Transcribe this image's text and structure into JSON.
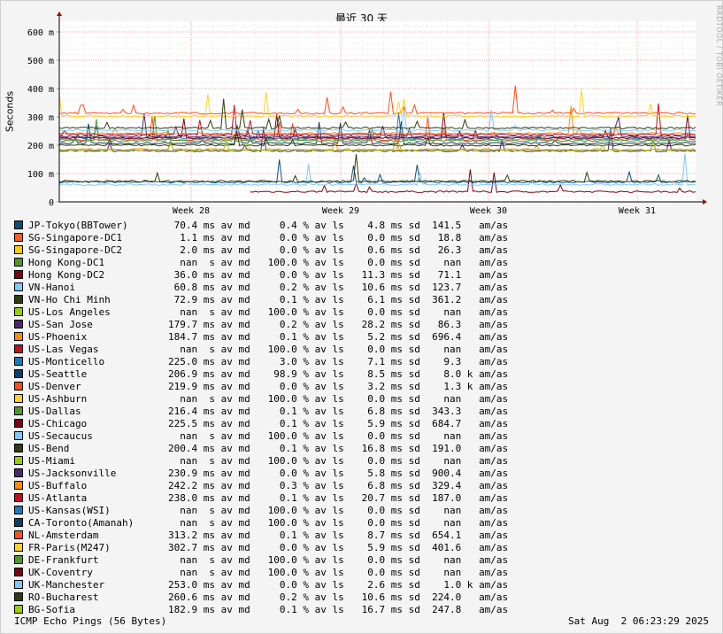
{
  "chart_data": {
    "type": "line",
    "title": "最近 30 天",
    "ylabel": "Seconds",
    "xlabel": "",
    "ylim": [
      0,
      0.65
    ],
    "yticks": [
      "0",
      "100 m",
      "200 m",
      "300 m",
      "400 m",
      "500 m",
      "600 m"
    ],
    "xticks": [
      "Week 28",
      "Week 29",
      "Week 30",
      "Week 31"
    ],
    "grid": true,
    "legend_placement": "below",
    "series": [
      {
        "name": "JP-Tokyo(BBTower)",
        "color": "#0b4f7a",
        "avg": "70.4 ms",
        "loss": "0.4 %",
        "sd": "4.8 ms",
        "amas": "141.5",
        "level": 0.07
      },
      {
        "name": "SG-Singapore-DC1",
        "color": "#ff5a1f",
        "avg": "1.1 ms",
        "loss": "0.0 %",
        "sd": "0.0 ms",
        "amas": "18.8",
        "level": null
      },
      {
        "name": "SG-Singapore-DC2",
        "color": "#ffcc00",
        "avg": "2.0 ms",
        "loss": "0.0 %",
        "sd": "0.6 ms",
        "amas": "26.3",
        "level": null
      },
      {
        "name": "Hong Kong-DC1",
        "color": "#4e9a26",
        "avg": "nan  s",
        "loss": "100.0 %",
        "sd": "0.0 ms",
        "amas": "nan",
        "level": null
      },
      {
        "name": "Hong Kong-DC2",
        "color": "#800015",
        "avg": "36.0 ms",
        "loss": "0.0 %",
        "sd": "11.3 ms",
        "amas": "71.1",
        "level": 0.036
      },
      {
        "name": "VN-Hanoi",
        "color": "#7ec8ff",
        "avg": "60.8 ms",
        "loss": "0.2 %",
        "sd": "10.6 ms",
        "amas": "123.7",
        "level": 0.061
      },
      {
        "name": "VN-Ho Chi Minh",
        "color": "#2e3d0c",
        "avg": "72.9 ms",
        "loss": "0.1 %",
        "sd": "6.1 ms",
        "amas": "361.2",
        "level": 0.073
      },
      {
        "name": "US-Los Angeles",
        "color": "#9bcc0a",
        "avg": "nan  s",
        "loss": "100.0 %",
        "sd": "0.0 ms",
        "amas": "nan",
        "level": null
      },
      {
        "name": "US-San Jose",
        "color": "#4d2670",
        "avg": "179.7 ms",
        "loss": "0.2 %",
        "sd": "28.2 ms",
        "amas": "86.3",
        "level": 0.18
      },
      {
        "name": "US-Phoenix",
        "color": "#ff8c00",
        "avg": "184.7 ms",
        "loss": "0.1 %",
        "sd": "5.2 ms",
        "amas": "696.4",
        "level": 0.185
      },
      {
        "name": "US-Las Vegas",
        "color": "#c40e1a",
        "avg": "nan  s",
        "loss": "100.0 %",
        "sd": "0.0 ms",
        "amas": "nan",
        "level": null
      },
      {
        "name": "US-Monticello",
        "color": "#1b7ab8",
        "avg": "225.0 ms",
        "loss": "3.0 %",
        "sd": "7.1 ms",
        "amas": "9.3",
        "level": 0.225
      },
      {
        "name": "US-Seattle",
        "color": "#0b3f70",
        "avg": "206.9 ms",
        "loss": "98.9 %",
        "sd": "8.5 ms",
        "amas": "8.0 k",
        "level": 0.207
      },
      {
        "name": "US-Denver",
        "color": "#ff4d1a",
        "avg": "219.9 ms",
        "loss": "0.0 %",
        "sd": "3.2 ms",
        "amas": "1.3 k",
        "level": 0.22
      },
      {
        "name": "US-Ashburn",
        "color": "#ffd21f",
        "avg": "nan  s",
        "loss": "100.0 %",
        "sd": "0.0 ms",
        "amas": "nan",
        "level": null
      },
      {
        "name": "US-Dallas",
        "color": "#4e9a26",
        "avg": "216.4 ms",
        "loss": "0.1 %",
        "sd": "6.8 ms",
        "amas": "343.3",
        "level": 0.216
      },
      {
        "name": "US-Chicago",
        "color": "#800015",
        "avg": "225.5 ms",
        "loss": "0.1 %",
        "sd": "5.9 ms",
        "amas": "684.7",
        "level": 0.226
      },
      {
        "name": "US-Secaucus",
        "color": "#7ec8ff",
        "avg": "nan  s",
        "loss": "100.0 %",
        "sd": "0.0 ms",
        "amas": "nan",
        "level": null
      },
      {
        "name": "US-Bend",
        "color": "#2e3d0c",
        "avg": "200.4 ms",
        "loss": "0.1 %",
        "sd": "16.8 ms",
        "amas": "191.0",
        "level": 0.2
      },
      {
        "name": "US-Miami",
        "color": "#9bcc0a",
        "avg": "nan  s",
        "loss": "100.0 %",
        "sd": "0.0 ms",
        "amas": "nan",
        "level": null
      },
      {
        "name": "US-Jacksonville",
        "color": "#4d2670",
        "avg": "230.9 ms",
        "loss": "0.0 %",
        "sd": "5.8 ms",
        "amas": "900.4",
        "level": 0.231
      },
      {
        "name": "US-Buffalo",
        "color": "#ff8c00",
        "avg": "242.2 ms",
        "loss": "0.3 %",
        "sd": "6.8 ms",
        "amas": "329.4",
        "level": 0.242
      },
      {
        "name": "US-Atlanta",
        "color": "#c40e1a",
        "avg": "238.0 ms",
        "loss": "0.1 %",
        "sd": "20.7 ms",
        "amas": "187.0",
        "level": 0.238
      },
      {
        "name": "US-Kansas(WSI)",
        "color": "#1b7ab8",
        "avg": "nan  s",
        "loss": "100.0 %",
        "sd": "0.0 ms",
        "amas": "nan",
        "level": null
      },
      {
        "name": "CA-Toronto(Amanah)",
        "color": "#0b3f70",
        "avg": "nan  s",
        "loss": "100.0 %",
        "sd": "0.0 ms",
        "amas": "nan",
        "level": null
      },
      {
        "name": "NL-Amsterdam",
        "color": "#ff4d1a",
        "avg": "313.2 ms",
        "loss": "0.1 %",
        "sd": "8.7 ms",
        "amas": "654.1",
        "level": 0.313
      },
      {
        "name": "FR-Paris(M247)",
        "color": "#ffd21f",
        "avg": "302.7 ms",
        "loss": "0.0 %",
        "sd": "5.9 ms",
        "amas": "401.6",
        "level": 0.303
      },
      {
        "name": "DE-Frankfurt",
        "color": "#4e9a26",
        "avg": "nan  s",
        "loss": "100.0 %",
        "sd": "0.0 ms",
        "amas": "nan",
        "level": null
      },
      {
        "name": "UK-Coventry",
        "color": "#800015",
        "avg": "nan  s",
        "loss": "100.0 %",
        "sd": "0.0 ms",
        "amas": "nan",
        "level": null
      },
      {
        "name": "UK-Manchester",
        "color": "#7ec8ff",
        "avg": "253.0 ms",
        "loss": "0.0 %",
        "sd": "2.6 ms",
        "amas": "1.0 k",
        "level": 0.253
      },
      {
        "name": "RO-Bucharest",
        "color": "#2e3d0c",
        "avg": "260.6 ms",
        "loss": "0.2 %",
        "sd": "10.6 ms",
        "amas": "224.0",
        "level": 0.261
      },
      {
        "name": "BG-Sofia",
        "color": "#9bcc0a",
        "avg": "182.9 ms",
        "loss": "0.1 %",
        "sd": "16.7 ms",
        "amas": "247.8",
        "level": 0.183
      }
    ]
  },
  "labels": {
    "av_md": "av md",
    "av_ls": "av ls",
    "sd": "sd",
    "amas": "am/as"
  },
  "footer": {
    "left": "ICMP Echo Pings (56 Bytes)",
    "right": "Sat Aug  2 06:23:29 2025"
  },
  "credit": "RRDTOOL / TOBI OETIKER"
}
